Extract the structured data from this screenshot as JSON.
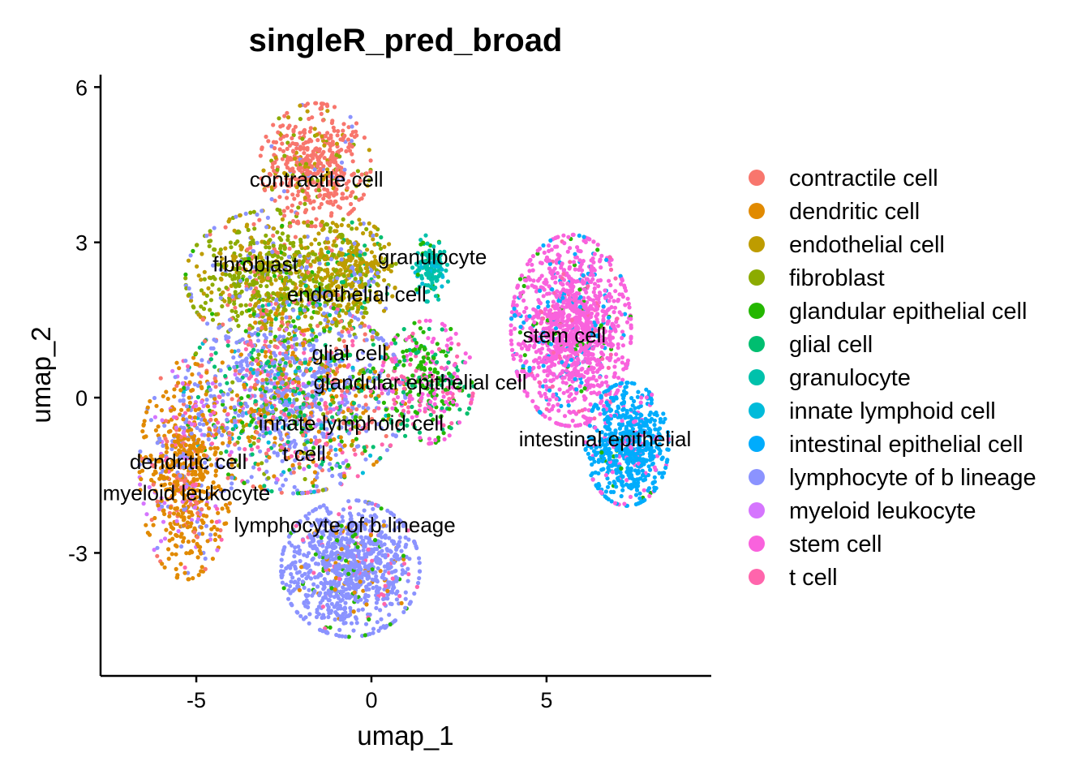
{
  "chart_data": {
    "type": "scatter",
    "title": "singleR_pred_broad",
    "xlabel": "umap_1",
    "ylabel": "umap_2",
    "xlim": [
      -7.71,
      9.68
    ],
    "ylim": [
      -5.36,
      6.24
    ],
    "xticks": [
      {
        "v": -5,
        "label": "-5"
      },
      {
        "v": 0,
        "label": "0"
      },
      {
        "v": 5,
        "label": "5"
      }
    ],
    "yticks": [
      {
        "v": 6,
        "label": "6"
      },
      {
        "v": 3,
        "label": "3"
      },
      {
        "v": 0,
        "label": "0"
      },
      {
        "v": -3,
        "label": "-3"
      }
    ],
    "grid": false,
    "legend_position": "right",
    "categories": [
      {
        "name": "contractile cell",
        "color": "#F8766D"
      },
      {
        "name": "dendritic cell",
        "color": "#E18A00"
      },
      {
        "name": "endothelial cell",
        "color": "#BE9C00"
      },
      {
        "name": "fibroblast",
        "color": "#8CAB00"
      },
      {
        "name": "glandular epithelial cell",
        "color": "#24B700"
      },
      {
        "name": "glial cell",
        "color": "#00BE70"
      },
      {
        "name": "granulocyte",
        "color": "#00C1AB"
      },
      {
        "name": "innate lymphoid cell",
        "color": "#00BBDA"
      },
      {
        "name": "intestinal epithelial cell",
        "color": "#00ACFC"
      },
      {
        "name": "lymphocyte of b lineage",
        "color": "#8B93FF"
      },
      {
        "name": "myeloid leukocyte",
        "color": "#D575FE"
      },
      {
        "name": "stem cell",
        "color": "#F962DD"
      },
      {
        "name": "t cell",
        "color": "#FF65AC"
      }
    ],
    "cluster_labels": [
      {
        "text": "contractile cell",
        "x": -1.57,
        "y": 4.22
      },
      {
        "text": "fibroblast",
        "x": -3.31,
        "y": 2.08
      },
      {
        "text": "endothelial cell",
        "x": -0.42,
        "y": 2.0
      },
      {
        "text": "granulocyte",
        "x": 1.74,
        "y": 2.16
      },
      {
        "text": "stem cell",
        "x": 5.51,
        "y": 1.21
      },
      {
        "text": "glial cell",
        "x": -0.63,
        "y": 0.86
      },
      {
        "text": "glandular epithelial cell",
        "x": 1.39,
        "y": 0.3
      },
      {
        "text": "innate lymphoid cell",
        "x": -0.58,
        "y": -0.49
      },
      {
        "text": "t cell",
        "x": -1.92,
        "y": -0.52
      },
      {
        "text": "intestinal epithelial",
        "x": 6.67,
        "y": -0.8
      },
      {
        "text": "dendritic cell",
        "x": -5.23,
        "y": -1.24
      },
      {
        "text": "myeloid leukocyte",
        "x": -5.28,
        "y": -1.43
      },
      {
        "text": "lymphocyte of b lineage",
        "x": -0.76,
        "y": -2.46
      }
    ],
    "clusters": [
      {
        "cx": -1.6,
        "cy": 4.5,
        "sx": 1.2,
        "sy": 0.9,
        "n": 500,
        "mix": {
          "0": 0.75,
          "3": 0.1,
          "2": 0.1,
          "9": 0.05
        }
      },
      {
        "cx": -2.8,
        "cy": 2.3,
        "sx": 1.9,
        "sy": 1.0,
        "n": 800,
        "mix": {
          "3": 0.5,
          "2": 0.25,
          "0": 0.1,
          "9": 0.1,
          "4": 0.05
        }
      },
      {
        "cx": -0.6,
        "cy": 2.4,
        "sx": 1.0,
        "sy": 0.8,
        "n": 350,
        "mix": {
          "2": 0.6,
          "3": 0.2,
          "9": 0.1,
          "5": 0.1
        }
      },
      {
        "cx": 1.7,
        "cy": 2.5,
        "sx": 0.4,
        "sy": 0.5,
        "n": 150,
        "mix": {
          "6": 0.7,
          "7": 0.2,
          "4": 0.1
        }
      },
      {
        "cx": -2.2,
        "cy": 0.0,
        "sx": 2.4,
        "sy": 1.4,
        "n": 1500,
        "mix": {
          "9": 0.35,
          "0": 0.1,
          "1": 0.12,
          "12": 0.1,
          "5": 0.1,
          "4": 0.08,
          "3": 0.08,
          "7": 0.04,
          "10": 0.03
        }
      },
      {
        "cx": -5.3,
        "cy": -1.4,
        "sx": 1.0,
        "sy": 1.6,
        "n": 700,
        "mix": {
          "1": 0.6,
          "9": 0.15,
          "0": 0.1,
          "10": 0.1,
          "12": 0.05
        }
      },
      {
        "cx": -0.6,
        "cy": -3.3,
        "sx": 1.5,
        "sy": 1.0,
        "n": 1000,
        "mix": {
          "9": 0.85,
          "4": 0.05,
          "12": 0.05,
          "1": 0.05
        }
      },
      {
        "cx": 1.6,
        "cy": 0.3,
        "sx": 1.0,
        "sy": 0.9,
        "n": 350,
        "mix": {
          "4": 0.3,
          "11": 0.3,
          "12": 0.2,
          "5": 0.2
        }
      },
      {
        "cx": 5.7,
        "cy": 1.3,
        "sx": 1.3,
        "sy": 1.4,
        "n": 1300,
        "mix": {
          "11": 0.82,
          "8": 0.1,
          "12": 0.05,
          "4": 0.03
        }
      },
      {
        "cx": 7.3,
        "cy": -0.9,
        "sx": 0.9,
        "sy": 0.9,
        "n": 650,
        "mix": {
          "8": 0.85,
          "11": 0.12,
          "4": 0.03
        }
      }
    ]
  }
}
